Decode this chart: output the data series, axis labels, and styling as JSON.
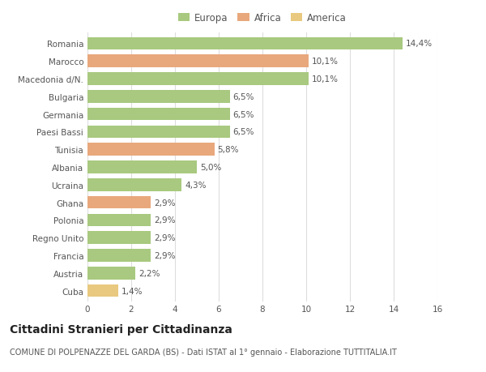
{
  "categories": [
    "Romania",
    "Marocco",
    "Macedonia d/N.",
    "Bulgaria",
    "Germania",
    "Paesi Bassi",
    "Tunisia",
    "Albania",
    "Ucraina",
    "Ghana",
    "Polonia",
    "Regno Unito",
    "Francia",
    "Austria",
    "Cuba"
  ],
  "values": [
    14.4,
    10.1,
    10.1,
    6.5,
    6.5,
    6.5,
    5.8,
    5.0,
    4.3,
    2.9,
    2.9,
    2.9,
    2.9,
    2.2,
    1.4
  ],
  "labels": [
    "14,4%",
    "10,1%",
    "10,1%",
    "6,5%",
    "6,5%",
    "6,5%",
    "5,8%",
    "5,0%",
    "4,3%",
    "2,9%",
    "2,9%",
    "2,9%",
    "2,9%",
    "2,2%",
    "1,4%"
  ],
  "colors": [
    "#a8c97f",
    "#e8a87c",
    "#a8c97f",
    "#a8c97f",
    "#a8c97f",
    "#a8c97f",
    "#e8a87c",
    "#a8c97f",
    "#a8c97f",
    "#e8a87c",
    "#a8c97f",
    "#a8c97f",
    "#a8c97f",
    "#a8c97f",
    "#e8c97f"
  ],
  "legend": [
    {
      "label": "Europa",
      "color": "#a8c97f"
    },
    {
      "label": "Africa",
      "color": "#e8a87c"
    },
    {
      "label": "America",
      "color": "#e8c97f"
    }
  ],
  "title": "Cittadini Stranieri per Cittadinanza",
  "subtitle": "COMUNE DI POLPENAZZE DEL GARDA (BS) - Dati ISTAT al 1° gennaio - Elaborazione TUTTITALIA.IT",
  "xlim": [
    0,
    16
  ],
  "xticks": [
    0,
    2,
    4,
    6,
    8,
    10,
    12,
    14,
    16
  ],
  "background_color": "#ffffff",
  "grid_color": "#dddddd",
  "bar_height": 0.72,
  "label_fontsize": 7.5,
  "tick_fontsize": 7.5,
  "title_fontsize": 10,
  "subtitle_fontsize": 7
}
